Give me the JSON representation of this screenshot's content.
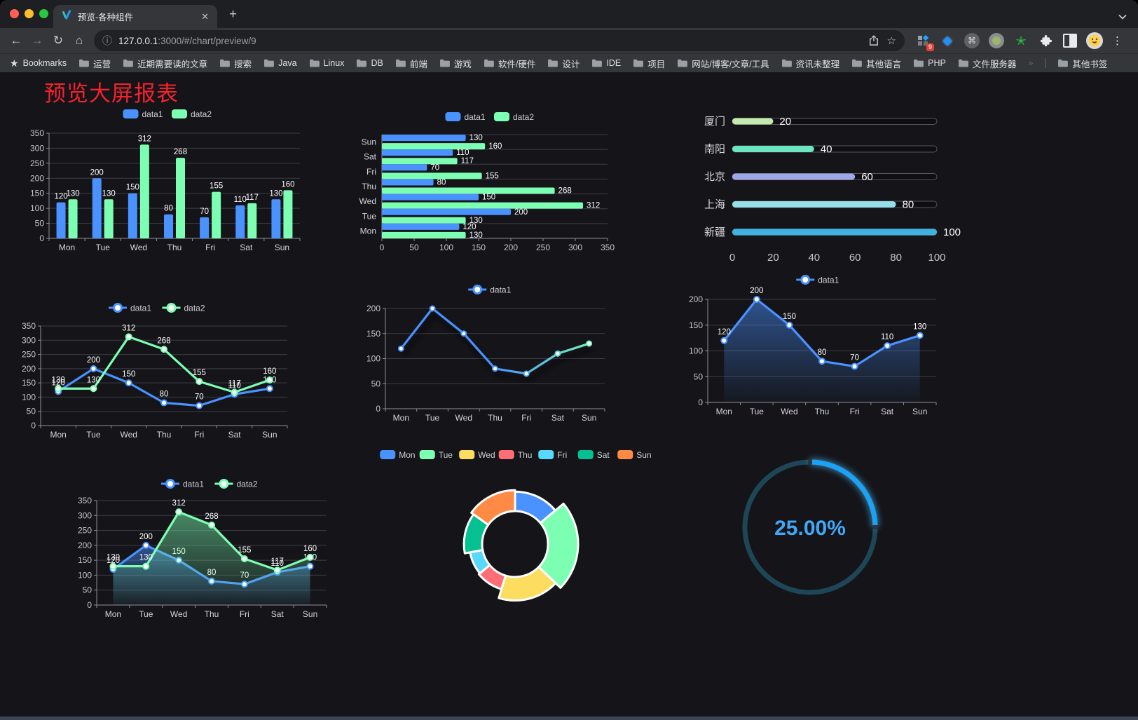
{
  "browser": {
    "tab": {
      "title": "预览-各种组件"
    },
    "url": {
      "host": "127.0.0.1",
      "path": ":3000/#/chart/preview/9"
    },
    "extensions_badge": "9",
    "bookmarks_bar": {
      "label": "Bookmarks",
      "folders": [
        "运营",
        "近期需要读的文章",
        "搜索",
        "Java",
        "Linux",
        "DB",
        "前端",
        "游戏",
        "软件/硬件",
        "设计",
        "IDE",
        "项目",
        "网站/博客/文章/工具",
        "资讯未整理",
        "其他语言",
        "PHP",
        "文件服务器"
      ],
      "overflow": "»",
      "other": "其他书签"
    }
  },
  "page": {
    "title": "预览大屏报表"
  },
  "chart_data": [
    {
      "id": "bar-grouped",
      "type": "bar",
      "legend": "top",
      "grid": true,
      "value_labels": true,
      "categories": [
        "Mon",
        "Tue",
        "Wed",
        "Thu",
        "Fri",
        "Sat",
        "Sun"
      ],
      "series": [
        {
          "name": "data1",
          "color": "#4992ff",
          "values": [
            120,
            200,
            150,
            80,
            70,
            110,
            130
          ]
        },
        {
          "name": "data2",
          "color": "#7cffb2",
          "values": [
            130,
            130,
            312,
            268,
            155,
            117,
            160
          ]
        }
      ],
      "ylim": [
        0,
        350
      ],
      "ytick": 50
    },
    {
      "id": "bar-horizontal",
      "type": "hbar",
      "legend": "top",
      "value_labels": true,
      "categories": [
        "Sun",
        "Sat",
        "Fri",
        "Thu",
        "Wed",
        "Tue",
        "Mon"
      ],
      "series": [
        {
          "name": "data1",
          "color": "#4992ff",
          "values": [
            130,
            110,
            70,
            80,
            150,
            200,
            120
          ]
        },
        {
          "name": "data2",
          "color": "#7cffb2",
          "values": [
            160,
            117,
            155,
            268,
            312,
            130,
            130
          ]
        }
      ],
      "xlim": [
        0,
        350
      ],
      "xtick": 50
    },
    {
      "id": "progress-bars",
      "type": "progress",
      "rows": [
        {
          "label": "厦门",
          "value": 20,
          "color": "#c4ebad"
        },
        {
          "label": "南阳",
          "value": 40,
          "color": "#6be6c1"
        },
        {
          "label": "北京",
          "value": 60,
          "color": "#a0a7e6"
        },
        {
          "label": "上海",
          "value": 80,
          "color": "#96dee8"
        },
        {
          "label": "新疆",
          "value": 100,
          "color": "#3fb1e3"
        }
      ],
      "xlim": [
        0,
        100
      ],
      "xticks": [
        0,
        20,
        40,
        60,
        80,
        100
      ]
    },
    {
      "id": "line-two-series",
      "type": "line",
      "legend": "top",
      "value_labels": true,
      "categories": [
        "Mon",
        "Tue",
        "Wed",
        "Thu",
        "Fri",
        "Sat",
        "Sun"
      ],
      "series": [
        {
          "name": "data1",
          "color": "#4992ff",
          "values": [
            120,
            200,
            150,
            80,
            70,
            110,
            130
          ]
        },
        {
          "name": "data2",
          "color": "#7cffb2",
          "values": [
            130,
            130,
            312,
            268,
            155,
            117,
            160
          ]
        }
      ],
      "ylim": [
        0,
        350
      ],
      "ytick": 50
    },
    {
      "id": "line-gradient-shadow",
      "type": "line",
      "legend": "top",
      "value_labels": false,
      "shadow": true,
      "categories": [
        "Mon",
        "Tue",
        "Wed",
        "Thu",
        "Fri",
        "Sat",
        "Sun"
      ],
      "series": [
        {
          "name": "data1",
          "color": "#4992ff",
          "color_end": "#7cffb2",
          "values": [
            120,
            200,
            150,
            80,
            70,
            110,
            130
          ]
        }
      ],
      "ylim": [
        0,
        200
      ],
      "ytick": 50
    },
    {
      "id": "line-area",
      "type": "line",
      "legend": "top",
      "value_labels": true,
      "categories": [
        "Mon",
        "Tue",
        "Wed",
        "Thu",
        "Fri",
        "Sat",
        "Sun"
      ],
      "series": [
        {
          "name": "data1",
          "color": "#4992ff",
          "area": true,
          "values": [
            120,
            200,
            150,
            80,
            70,
            110,
            130
          ]
        }
      ],
      "ylim": [
        0,
        200
      ],
      "ytick": 50
    },
    {
      "id": "line-area-two",
      "type": "line",
      "legend": "top",
      "value_labels": true,
      "categories": [
        "Mon",
        "Tue",
        "Wed",
        "Thu",
        "Fri",
        "Sat",
        "Sun"
      ],
      "series": [
        {
          "name": "data1",
          "color": "#4992ff",
          "area": true,
          "values": [
            120,
            200,
            150,
            80,
            70,
            110,
            130
          ]
        },
        {
          "name": "data2",
          "color": "#7cffb2",
          "area": true,
          "values": [
            130,
            130,
            312,
            268,
            155,
            117,
            160
          ]
        }
      ],
      "ylim": [
        0,
        350
      ],
      "ytick": 50
    },
    {
      "id": "donut-rose",
      "type": "donut",
      "legend": "top",
      "items": [
        {
          "label": "Mon",
          "value": 120,
          "color": "#4992ff"
        },
        {
          "label": "Tue",
          "value": 200,
          "color": "#7cffb2"
        },
        {
          "label": "Wed",
          "value": 150,
          "color": "#fddd60"
        },
        {
          "label": "Thu",
          "value": 80,
          "color": "#ff6e76"
        },
        {
          "label": "Fri",
          "value": 70,
          "color": "#58d9f9"
        },
        {
          "label": "Sat",
          "value": 110,
          "color": "#05c091"
        },
        {
          "label": "Sun",
          "value": 130,
          "color": "#ff8a45"
        }
      ]
    },
    {
      "id": "gauge-percent",
      "type": "gauge",
      "value": 25,
      "max": 100,
      "label": "25.00%",
      "color": "#1da2f5",
      "track_color": "#1d4656",
      "text_color": "#41a8f7"
    }
  ]
}
